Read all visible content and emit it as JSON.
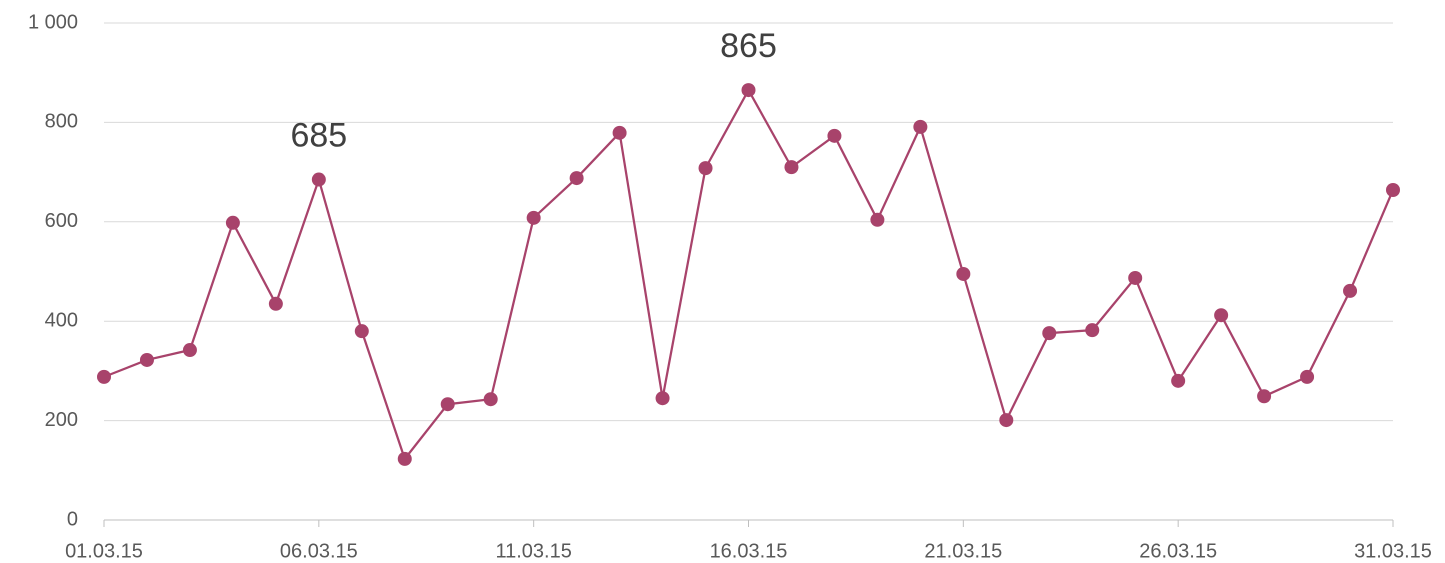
{
  "chart_data": {
    "type": "line",
    "categories": [
      "01.03.15",
      null,
      null,
      null,
      null,
      "06.03.15",
      null,
      null,
      null,
      null,
      "11.03.15",
      null,
      null,
      null,
      null,
      "16.03.15",
      null,
      null,
      null,
      null,
      "21.03.15",
      null,
      null,
      null,
      null,
      "26.03.15",
      null,
      null,
      null,
      null,
      "31.03.15"
    ],
    "values": [
      288,
      322,
      342,
      598,
      435,
      685,
      380,
      123,
      233,
      243,
      608,
      688,
      779,
      245,
      708,
      865,
      710,
      773,
      604,
      791,
      495,
      201,
      376,
      382,
      487,
      280,
      412,
      249,
      288,
      461,
      664
    ],
    "value_labels": [
      null,
      null,
      null,
      null,
      null,
      "685",
      null,
      null,
      null,
      null,
      null,
      null,
      null,
      null,
      null,
      "865",
      null,
      null,
      null,
      null,
      null,
      null,
      null,
      null,
      null,
      null,
      null,
      null,
      null,
      null,
      null
    ],
    "color": "#a8436b",
    "ylim": [
      0,
      1000
    ],
    "yticks": [
      0,
      200,
      400,
      600,
      800,
      {
        "value": 1000,
        "label": "1 000"
      }
    ],
    "grid": true
  }
}
